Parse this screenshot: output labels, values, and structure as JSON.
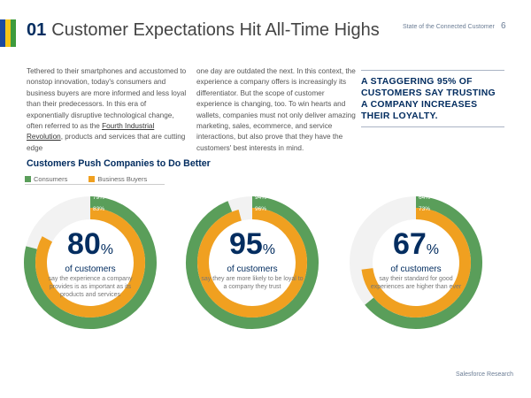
{
  "header": {
    "section_number": "01",
    "title": "Customer Expectations Hit All-Time Highs",
    "report_name": "State of the Connected Customer",
    "page_number": "6"
  },
  "stripe_colors": [
    "#1b4aa0",
    "#f5c518",
    "#3d9b3d"
  ],
  "body": {
    "col1_before_link": "Tethered to their smartphones and accustomed to nonstop innovation, today's consumers and business buyers are more informed and less loyal than their predecessors. In this era of exponentially disruptive technological change, often referred to as the ",
    "col1_link": "Fourth Industrial Revolution",
    "col1_after_link": ", products and services that are cutting edge",
    "col2": "one day are outdated the next. In this context, the experience a company offers is increasingly its differentiator. But the scope of customer experience is changing, too. To win hearts and wallets, companies must not only deliver amazing marketing, sales, ecommerce, and service interactions, but also prove that they have the customers' best interests in mind."
  },
  "pull_quote": "A STAGGERING 95% OF CUSTOMERS SAY TRUSTING A COMPANY INCREASES THEIR LOYALTY.",
  "chart_heading": "Customers Push Companies to Do Better",
  "colors": {
    "consumers": "#5a9e5a",
    "business_buyers": "#f0a020",
    "track": "#f2f2f2",
    "navy": "#032d60"
  },
  "chart_data": {
    "type": "donut",
    "legend": [
      "Consumers",
      "Business Buyers"
    ],
    "charts": [
      {
        "headline": "80",
        "unit": "%",
        "of": "of customers",
        "description": "say the experience a company provides is as important as its products and services",
        "consumers": 79,
        "business_buyers": 83,
        "consumers_label": "79%",
        "business_buyers_label": "83%"
      },
      {
        "headline": "95",
        "unit": "%",
        "of": "of customers",
        "description": "say they are more likely to be loyal to a company they trust",
        "consumers": 94,
        "business_buyers": 96,
        "consumers_label": "94%",
        "business_buyers_label": "96%"
      },
      {
        "headline": "67",
        "unit": "%",
        "of": "of customers",
        "description": "say their standard for good experiences are higher than ever",
        "consumers": 64,
        "business_buyers": 73,
        "consumers_label": "64%",
        "business_buyers_label": "73%"
      }
    ]
  },
  "footer": "Salesforce Research"
}
